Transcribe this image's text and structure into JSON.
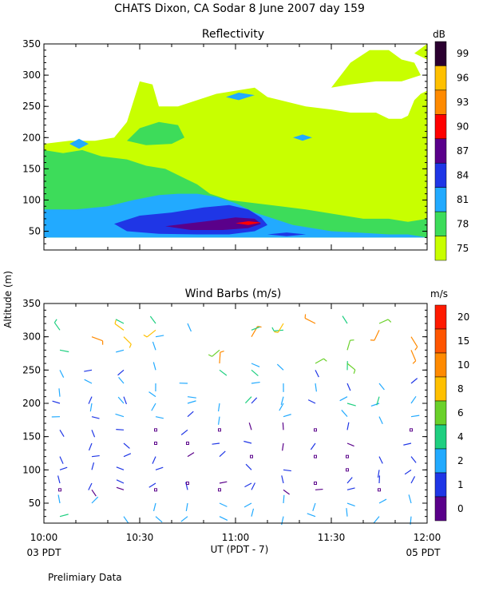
{
  "page": {
    "title": "CHATS Dixon, CA   Sodar    8 June 2007   day 159",
    "footer_note": "Prelimiary Data",
    "shared_ylabel": "Altitude (m)",
    "xaxis_label": "UT  (PDT - 7)",
    "x_left_local": "03 PDT",
    "x_right_local": "05 PDT"
  },
  "chart_data": [
    {
      "type": "heatmap",
      "title": "Reflectivity",
      "colorbar_unit": "dB",
      "xlabel": "UT  (PDT - 7)",
      "ylabel": "Altitude (m)",
      "x_ticks": [
        "10:00",
        "10:30",
        "11:00",
        "11:30",
        "12:00"
      ],
      "x_range_minutes_utc": [
        0,
        120
      ],
      "ylim": [
        20,
        350
      ],
      "y_ticks": [
        50,
        100,
        150,
        200,
        250,
        300,
        350
      ],
      "levels": [
        75,
        78,
        81,
        84,
        87,
        90,
        93,
        96,
        99
      ],
      "level_colors": [
        "#c8ff00",
        "#3ddc5a",
        "#22aaff",
        "#1f36e6",
        "#5a008a",
        "#ff0000",
        "#ff8a00",
        "#ffc000",
        "#2b0030"
      ],
      "regions": [
        {
          "level": 75,
          "polygon": [
            [
              0,
              190
            ],
            [
              8,
              195
            ],
            [
              16,
              195
            ],
            [
              22,
              200
            ],
            [
              26,
              225
            ],
            [
              30,
              290
            ],
            [
              34,
              285
            ],
            [
              36,
              250
            ],
            [
              42,
              250
            ],
            [
              48,
              260
            ],
            [
              54,
              270
            ],
            [
              60,
              275
            ],
            [
              66,
              280
            ],
            [
              70,
              265
            ],
            [
              74,
              260
            ],
            [
              82,
              250
            ],
            [
              90,
              245
            ],
            [
              96,
              240
            ],
            [
              104,
              240
            ],
            [
              108,
              230
            ],
            [
              112,
              230
            ],
            [
              114,
              235
            ],
            [
              116,
              260
            ],
            [
              118,
              270
            ],
            [
              120,
              275
            ],
            [
              120,
              40
            ],
            [
              0,
              40
            ]
          ]
        },
        {
          "level": 75,
          "polygon": [
            [
              90,
              280
            ],
            [
              96,
              320
            ],
            [
              102,
              340
            ],
            [
              108,
              340
            ],
            [
              112,
              325
            ],
            [
              116,
              320
            ],
            [
              118,
              300
            ],
            [
              112,
              290
            ],
            [
              104,
              290
            ],
            [
              96,
              285
            ]
          ]
        },
        {
          "level": 75,
          "polygon": [
            [
              116,
              335
            ],
            [
              120,
              350
            ],
            [
              120,
              325
            ]
          ]
        },
        {
          "level": 78,
          "polygon": [
            [
              0,
              180
            ],
            [
              6,
              175
            ],
            [
              12,
              180
            ],
            [
              18,
              170
            ],
            [
              26,
              165
            ],
            [
              32,
              155
            ],
            [
              38,
              150
            ],
            [
              44,
              135
            ],
            [
              48,
              125
            ],
            [
              52,
              110
            ],
            [
              58,
              100
            ],
            [
              66,
              95
            ],
            [
              74,
              90
            ],
            [
              82,
              85
            ],
            [
              88,
              80
            ],
            [
              94,
              75
            ],
            [
              100,
              70
            ],
            [
              108,
              70
            ],
            [
              114,
              65
            ],
            [
              120,
              70
            ],
            [
              120,
              40
            ],
            [
              0,
              40
            ]
          ]
        },
        {
          "level": 78,
          "polygon": [
            [
              26,
              195
            ],
            [
              30,
              215
            ],
            [
              36,
              225
            ],
            [
              42,
              220
            ],
            [
              44,
              200
            ],
            [
              40,
              190
            ],
            [
              32,
              188
            ]
          ]
        },
        {
          "level": 81,
          "polygon": [
            [
              0,
              85
            ],
            [
              10,
              85
            ],
            [
              20,
              90
            ],
            [
              28,
              100
            ],
            [
              36,
              108
            ],
            [
              42,
              110
            ],
            [
              48,
              110
            ],
            [
              54,
              105
            ],
            [
              60,
              95
            ],
            [
              66,
              80
            ],
            [
              72,
              70
            ],
            [
              78,
              60
            ],
            [
              84,
              55
            ],
            [
              90,
              50
            ],
            [
              98,
              48
            ],
            [
              108,
              45
            ],
            [
              114,
              45
            ],
            [
              120,
              40
            ],
            [
              0,
              40
            ]
          ]
        },
        {
          "level": 81,
          "polygon": [
            [
              8,
              190
            ],
            [
              11,
              198
            ],
            [
              14,
              190
            ],
            [
              11,
              182
            ]
          ]
        },
        {
          "level": 81,
          "polygon": [
            [
              57,
              265
            ],
            [
              61,
              272
            ],
            [
              66,
              268
            ],
            [
              61,
              260
            ]
          ]
        },
        {
          "level": 81,
          "polygon": [
            [
              78,
              200
            ],
            [
              81,
              205
            ],
            [
              84,
              200
            ],
            [
              81,
              195
            ]
          ]
        },
        {
          "level": 84,
          "polygon": [
            [
              22,
              62
            ],
            [
              30,
              75
            ],
            [
              40,
              80
            ],
            [
              50,
              88
            ],
            [
              58,
              92
            ],
            [
              64,
              85
            ],
            [
              68,
              72
            ],
            [
              70,
              60
            ],
            [
              66,
              50
            ],
            [
              58,
              45
            ],
            [
              48,
              45
            ],
            [
              36,
              46
            ],
            [
              26,
              50
            ]
          ]
        },
        {
          "level": 84,
          "polygon": [
            [
              70,
              45
            ],
            [
              76,
              48
            ],
            [
              82,
              45
            ],
            [
              76,
              42
            ]
          ]
        },
        {
          "level": 87,
          "polygon": [
            [
              38,
              58
            ],
            [
              46,
              63
            ],
            [
              54,
              68
            ],
            [
              60,
              72
            ],
            [
              66,
              70
            ],
            [
              68,
              62
            ],
            [
              64,
              55
            ],
            [
              56,
              52
            ],
            [
              46,
              52
            ]
          ]
        },
        {
          "level": 90,
          "polygon": [
            [
              60,
              63
            ],
            [
              64,
              66
            ],
            [
              68,
              64
            ],
            [
              64,
              60
            ]
          ]
        }
      ]
    },
    {
      "type": "scatter",
      "title": "Wind Barbs (m/s)",
      "colorbar_unit": "m/s",
      "xlabel": "UT  (PDT - 7)",
      "ylabel": "Altitude (m)",
      "x_ticks": [
        "10:00",
        "10:30",
        "11:00",
        "11:30",
        "12:00"
      ],
      "x_range_minutes_utc": [
        0,
        120
      ],
      "ylim": [
        20,
        350
      ],
      "y_ticks": [
        50,
        100,
        150,
        200,
        250,
        300,
        350
      ],
      "speed_levels": [
        0,
        1,
        2,
        4,
        6,
        8,
        10,
        15,
        20
      ],
      "speed_colors": [
        "#5a008a",
        "#1f36e6",
        "#22aaff",
        "#1fcf80",
        "#6ad12a",
        "#ffc000",
        "#ff8a00",
        "#ff5500",
        "#ff1a00"
      ],
      "times_minutes": [
        5,
        15,
        25,
        35,
        45,
        55,
        65,
        75,
        85,
        95,
        105,
        115
      ],
      "heights_m": [
        30,
        50,
        70,
        80,
        100,
        120,
        140,
        160,
        180,
        200,
        210,
        230,
        250,
        260,
        280,
        300,
        310,
        320
      ],
      "notes": "wind barbs drawn as oriented line segments colored by speed"
    }
  ]
}
